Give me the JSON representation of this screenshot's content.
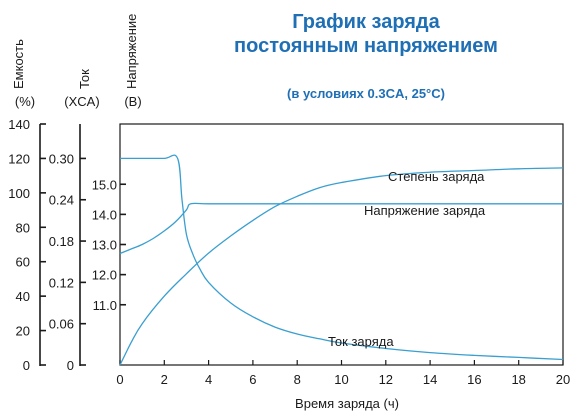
{
  "chart_data": {
    "type": "line",
    "title_line1": "График заряда",
    "title_line2": "постоянным напряжением",
    "subtitle": "(в условиях 0.3CA, 25°C)",
    "xlabel": "Время заряда (ч)",
    "xlim": [
      0,
      20
    ],
    "x_ticks": [
      "0",
      "2",
      "4",
      "6",
      "8",
      "10",
      "12",
      "14",
      "16",
      "18",
      "20"
    ],
    "line_color": "#3a9fd0",
    "title_color": "#1f6fb5",
    "axes": {
      "capacity": {
        "label": "Емкость",
        "unit": "(%)",
        "range": [
          0,
          140
        ],
        "ticks": [
          "0",
          "20",
          "40",
          "60",
          "80",
          "100",
          "120",
          "140"
        ]
      },
      "current": {
        "label": "Ток",
        "unit": "(XCA)",
        "range": [
          0,
          0.35
        ],
        "ticks": [
          "0",
          "0.06",
          "0.12",
          "0.18",
          "0.24",
          "0.30"
        ]
      },
      "voltage": {
        "label": "Напряжение",
        "unit": "(В)",
        "range": [
          9.0,
          17.0
        ],
        "ticks": [
          "11.0",
          "12.0",
          "13.0",
          "14.0",
          "15.0"
        ]
      }
    },
    "series": [
      {
        "name": "Степень заряда",
        "axis": "capacity",
        "x": [
          0,
          0.5,
          1,
          2,
          3,
          4,
          5,
          6,
          7,
          8,
          9,
          10,
          12,
          14,
          16,
          18,
          20
        ],
        "y": [
          0,
          13,
          24,
          40,
          53,
          65,
          75,
          84,
          92,
          98,
          103,
          106,
          110,
          112,
          113,
          114,
          114.5
        ]
      },
      {
        "name": "Напряжение заряда",
        "axis": "voltage",
        "x": [
          0,
          0.5,
          1,
          1.5,
          2,
          2.5,
          3,
          3.2,
          4,
          6,
          8,
          10,
          12,
          14,
          16,
          18,
          20
        ],
        "y": [
          12.7,
          12.85,
          13.0,
          13.2,
          13.45,
          13.75,
          14.15,
          14.35,
          14.35,
          14.35,
          14.35,
          14.35,
          14.35,
          14.35,
          14.35,
          14.35,
          14.35
        ]
      },
      {
        "name": "Ток заряда",
        "axis": "current",
        "x": [
          0,
          1,
          2,
          2.6,
          2.8,
          3.0,
          3.3,
          3.6,
          4,
          5,
          6,
          7,
          8,
          9,
          10,
          12,
          14,
          16,
          18,
          20
        ],
        "y": [
          0.3,
          0.3,
          0.3,
          0.3,
          0.24,
          0.19,
          0.16,
          0.14,
          0.12,
          0.09,
          0.07,
          0.055,
          0.045,
          0.038,
          0.032,
          0.024,
          0.018,
          0.014,
          0.011,
          0.008
        ]
      }
    ]
  }
}
